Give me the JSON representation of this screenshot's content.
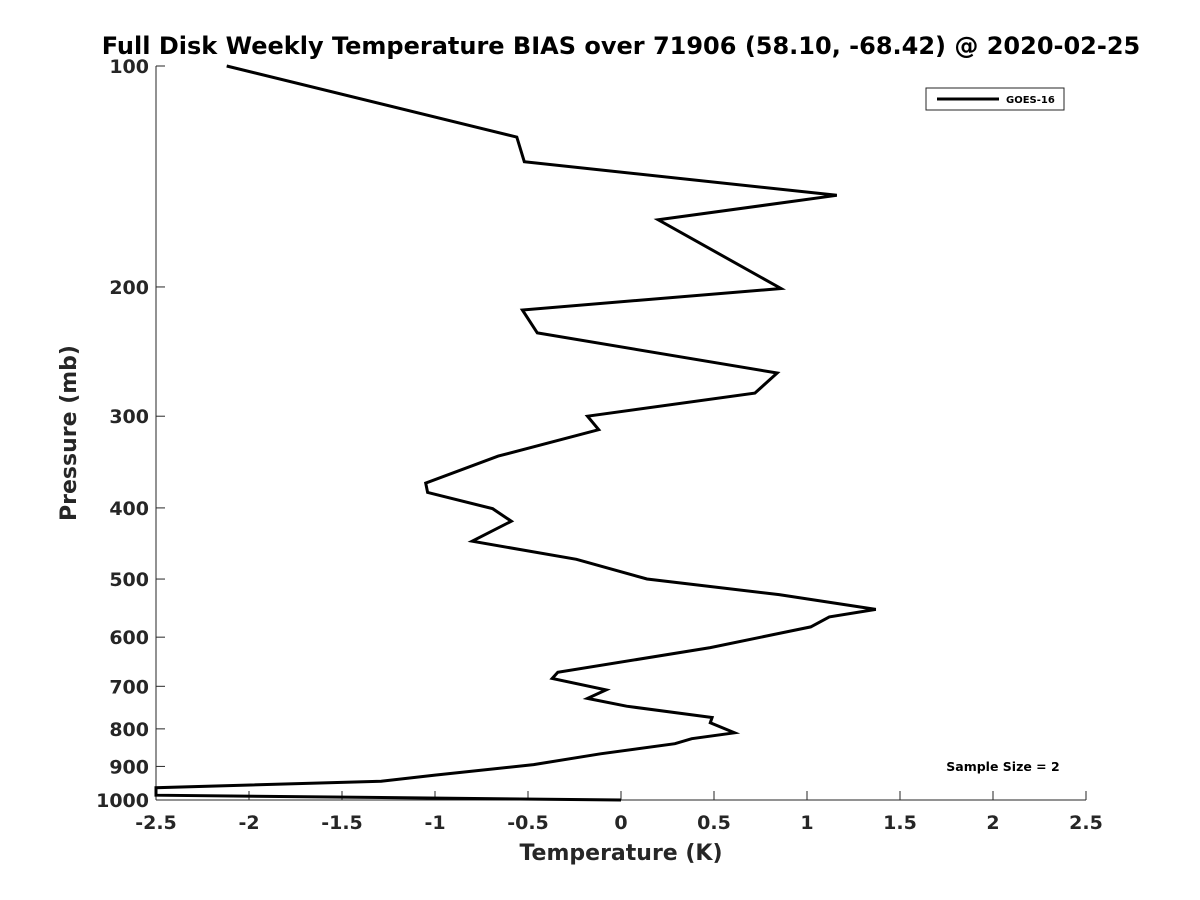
{
  "chart_data": {
    "type": "line",
    "title": "Full Disk Weekly Temperature BIAS over 71906 (58.10, -68.42) @ 2020-02-25",
    "xlabel": "Temperature (K)",
    "ylabel": "Pressure (mb)",
    "xlim": [
      -2.5,
      2.5
    ],
    "ylim": [
      100,
      1000
    ],
    "y_scale": "log",
    "y_reversed": true,
    "x_ticks": [
      "-2.5",
      "-2",
      "-1.5",
      "-1",
      "-0.5",
      "0",
      "0.5",
      "1",
      "1.5",
      "2",
      "2.5"
    ],
    "y_ticks": [
      "100",
      "200",
      "300",
      "400",
      "500",
      "600",
      "700",
      "800",
      "900",
      "1000"
    ],
    "grid": false,
    "legend_position": "top-right",
    "series": [
      {
        "name": "GOES-16",
        "color": "#000000",
        "x": [
          -2.12,
          -0.56,
          -0.52,
          1.16,
          0.2,
          0.86,
          -0.53,
          -0.45,
          0.84,
          0.72,
          -0.18,
          -0.12,
          -0.66,
          -1.05,
          -1.04,
          -0.69,
          -0.59,
          -0.8,
          -0.24,
          0.14,
          0.85,
          1.37,
          1.12,
          1.02,
          0.48,
          -0.34,
          -0.37,
          -0.08,
          -0.18,
          0.03,
          0.49,
          0.48,
          0.61,
          0.38,
          0.29,
          -0.11,
          -0.47,
          -1.0,
          -1.29,
          -2.5,
          -2.5,
          0.0
        ],
        "y": [
          100,
          125,
          135,
          150,
          162,
          201,
          215,
          231,
          262,
          279,
          300,
          313,
          340,
          370,
          381,
          401,
          417,
          444,
          470,
          500,
          525,
          550,
          563,
          581,
          620,
          670,
          683,
          708,
          727,
          745,
          772,
          785,
          810,
          825,
          838,
          865,
          895,
          925,
          943,
          962,
          985,
          1000
        ]
      }
    ],
    "annotation": "Sample Size = 2"
  }
}
